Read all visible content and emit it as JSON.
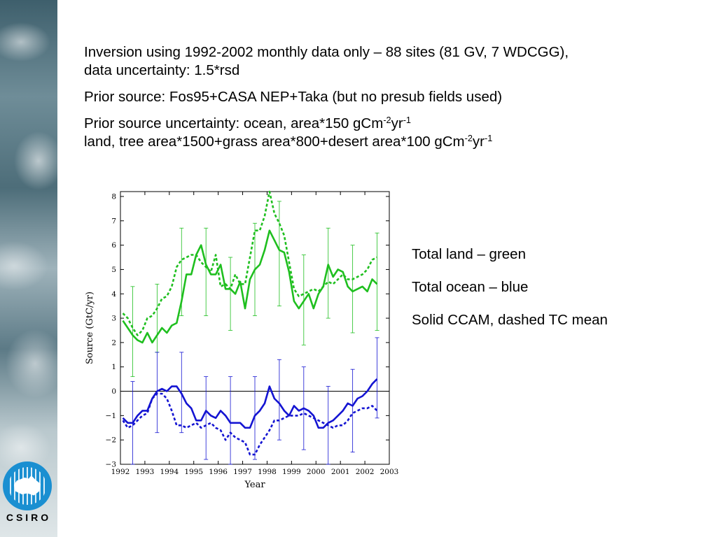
{
  "header": {
    "line1": "Inversion using 1992-2002 monthly data only – 88 sites (81 GV, 7 WDCGG),",
    "line2": "data uncertainty: 1.5*rsd",
    "prior_source": "Prior source: Fos95+CASA NEP+Taka (but no presub fields used)",
    "unc_ocean_text": "Prior source uncertainty: ocean, area*150 gCm",
    "unc_land_text": "land, tree area*1500+grass area*800+desert area*100 gCm",
    "exp_m2": "-2",
    "yr": "yr",
    "exp_m1": "-1"
  },
  "notes": {
    "land": "Total land – green",
    "ocean": "Total ocean – blue",
    "style": "Solid CCAM, dashed TC mean"
  },
  "logo": {
    "text": "CSIRO"
  },
  "colors": {
    "land": "#1fbf1f",
    "ocean": "#1414d2",
    "frame": "#000000",
    "zero_line": "#000000"
  },
  "chart_data": {
    "type": "line",
    "xlabel": "Year",
    "ylabel": "Source (GtC/yr)",
    "xlim": [
      1992,
      2003
    ],
    "ylim": [
      -3,
      8.2
    ],
    "xticks": [
      1992,
      1993,
      1994,
      1995,
      1996,
      1997,
      1998,
      1999,
      2000,
      2001,
      2002,
      2003
    ],
    "yticks": [
      -3,
      -2,
      -1,
      0,
      1,
      2,
      3,
      4,
      5,
      6,
      7,
      8
    ],
    "zero_line": true,
    "series": [
      {
        "style": "solid",
        "color": "land",
        "x": [
          1992.1,
          1992.3,
          1992.5,
          1992.7,
          1992.9,
          1993.1,
          1993.3,
          1993.5,
          1993.7,
          1993.9,
          1994.1,
          1994.3,
          1994.5,
          1994.7,
          1994.9,
          1995.1,
          1995.3,
          1995.5,
          1995.7,
          1995.9,
          1996.1,
          1996.3,
          1996.5,
          1996.7,
          1996.9,
          1997.1,
          1997.3,
          1997.5,
          1997.7,
          1997.9,
          1998.1,
          1998.3,
          1998.5,
          1998.7,
          1998.9,
          1999.1,
          1999.3,
          1999.5,
          1999.7,
          1999.9,
          2000.1,
          2000.3,
          2000.5,
          2000.7,
          2000.9,
          2001.1,
          2001.3,
          2001.5,
          2001.7,
          2001.9,
          2002.1,
          2002.3,
          2002.5
        ],
        "y": [
          2.9,
          2.6,
          2.3,
          2.1,
          2.0,
          2.4,
          2.0,
          2.3,
          2.6,
          2.4,
          2.7,
          2.8,
          3.7,
          4.8,
          4.8,
          5.6,
          6.0,
          5.2,
          4.8,
          4.8,
          5.2,
          4.2,
          4.2,
          4.0,
          4.5,
          3.4,
          4.6,
          5.0,
          5.2,
          5.8,
          6.6,
          6.2,
          5.8,
          5.7,
          4.9,
          3.7,
          3.4,
          3.7,
          4.0,
          3.4,
          4.0,
          4.3,
          5.2,
          4.7,
          5.0,
          4.9,
          4.3,
          4.1,
          4.2,
          4.3,
          4.1,
          4.6,
          4.4
        ]
      },
      {
        "style": "dashed",
        "color": "land",
        "x": [
          1992.1,
          1992.3,
          1992.5,
          1992.7,
          1992.9,
          1993.1,
          1993.3,
          1993.5,
          1993.7,
          1993.9,
          1994.1,
          1994.3,
          1994.5,
          1994.7,
          1994.9,
          1995.1,
          1995.3,
          1995.5,
          1995.7,
          1995.9,
          1996.1,
          1996.3,
          1996.5,
          1996.7,
          1996.9,
          1997.1,
          1997.3,
          1997.5,
          1997.7,
          1997.9,
          1998.1,
          1998.3,
          1998.5,
          1998.7,
          1998.9,
          1999.1,
          1999.3,
          1999.5,
          1999.7,
          1999.9,
          2000.1,
          2000.3,
          2000.5,
          2000.7,
          2000.9,
          2001.1,
          2001.3,
          2001.5,
          2001.7,
          2001.9,
          2002.1,
          2002.3,
          2002.5
        ],
        "y": [
          3.2,
          3.0,
          2.6,
          2.3,
          2.5,
          3.0,
          3.1,
          3.4,
          3.8,
          3.9,
          4.3,
          5.1,
          5.4,
          5.5,
          5.6,
          5.6,
          5.3,
          5.1,
          4.9,
          5.6,
          4.3,
          4.4,
          4.2,
          4.8,
          4.4,
          4.4,
          5.5,
          6.6,
          6.6,
          7.2,
          8.2,
          7.3,
          6.9,
          6.4,
          5.3,
          4.2,
          3.9,
          4.0,
          4.1,
          4.2,
          4.1,
          4.3,
          4.5,
          4.4,
          4.6,
          4.8,
          4.6,
          4.6,
          4.7,
          4.8,
          5.0,
          5.4,
          5.5
        ]
      },
      {
        "style": "solid",
        "color": "ocean",
        "x": [
          1992.1,
          1992.3,
          1992.5,
          1992.7,
          1992.9,
          1993.1,
          1993.3,
          1993.5,
          1993.7,
          1993.9,
          1994.1,
          1994.3,
          1994.5,
          1994.7,
          1994.9,
          1995.1,
          1995.3,
          1995.5,
          1995.7,
          1995.9,
          1996.1,
          1996.3,
          1996.5,
          1996.7,
          1996.9,
          1997.1,
          1997.3,
          1997.5,
          1997.7,
          1997.9,
          1998.1,
          1998.3,
          1998.5,
          1998.7,
          1998.9,
          1999.1,
          1999.3,
          1999.5,
          1999.7,
          1999.9,
          2000.1,
          2000.3,
          2000.5,
          2000.7,
          2000.9,
          2001.1,
          2001.3,
          2001.5,
          2001.7,
          2001.9,
          2002.1,
          2002.3,
          2002.5
        ],
        "y": [
          -1.1,
          -1.3,
          -1.3,
          -1.0,
          -0.8,
          -0.8,
          -0.3,
          0.0,
          0.1,
          0.0,
          0.2,
          0.2,
          -0.1,
          -0.5,
          -0.7,
          -1.2,
          -1.2,
          -0.8,
          -1.0,
          -1.1,
          -0.8,
          -1.0,
          -1.3,
          -1.3,
          -1.3,
          -1.5,
          -1.5,
          -1.0,
          -0.8,
          -0.5,
          0.2,
          -0.3,
          -0.5,
          -0.8,
          -1.0,
          -0.6,
          -0.8,
          -0.7,
          -0.8,
          -1.0,
          -1.5,
          -1.5,
          -1.3,
          -1.2,
          -1.0,
          -0.8,
          -0.5,
          -0.6,
          -0.3,
          -0.2,
          0.0,
          0.3,
          0.5
        ]
      },
      {
        "style": "dashed",
        "color": "ocean",
        "x": [
          1992.1,
          1992.3,
          1992.5,
          1992.7,
          1992.9,
          1993.1,
          1993.3,
          1993.5,
          1993.7,
          1993.9,
          1994.1,
          1994.3,
          1994.5,
          1994.7,
          1994.9,
          1995.1,
          1995.3,
          1995.5,
          1995.7,
          1995.9,
          1996.1,
          1996.3,
          1996.5,
          1996.7,
          1996.9,
          1997.1,
          1997.3,
          1997.5,
          1997.7,
          1997.9,
          1998.1,
          1998.3,
          1998.5,
          1998.7,
          1998.9,
          1999.1,
          1999.3,
          1999.5,
          1999.7,
          1999.9,
          2000.1,
          2000.3,
          2000.5,
          2000.7,
          2000.9,
          2001.1,
          2001.3,
          2001.5,
          2001.7,
          2001.9,
          2002.1,
          2002.3,
          2002.5
        ],
        "y": [
          -1.2,
          -1.5,
          -1.4,
          -1.2,
          -1.0,
          -0.9,
          -0.3,
          -0.1,
          -0.1,
          -0.3,
          -0.8,
          -1.4,
          -1.4,
          -1.5,
          -1.4,
          -1.3,
          -1.5,
          -1.4,
          -1.3,
          -1.5,
          -1.6,
          -2.0,
          -1.7,
          -1.9,
          -2.0,
          -2.1,
          -2.6,
          -2.6,
          -2.2,
          -1.9,
          -1.6,
          -1.2,
          -1.2,
          -1.1,
          -1.0,
          -1.0,
          -1.0,
          -0.9,
          -1.0,
          -1.1,
          -1.2,
          -1.3,
          -1.4,
          -1.5,
          -1.4,
          -1.4,
          -1.2,
          -0.9,
          -0.8,
          -0.7,
          -0.7,
          -0.6,
          -0.8
        ]
      }
    ],
    "error_bars": [
      {
        "color": "land",
        "x": 1992.5,
        "low": 0.6,
        "high": 4.3
      },
      {
        "color": "land",
        "x": 1993.5,
        "low": 1.6,
        "high": 4.4
      },
      {
        "color": "land",
        "x": 1994.5,
        "low": 3.1,
        "high": 6.7
      },
      {
        "color": "land",
        "x": 1995.5,
        "low": 3.1,
        "high": 6.7
      },
      {
        "color": "land",
        "x": 1996.5,
        "low": 2.5,
        "high": 5.5
      },
      {
        "color": "land",
        "x": 1997.5,
        "low": 3.1,
        "high": 6.9
      },
      {
        "color": "land",
        "x": 1998.5,
        "low": 3.5,
        "high": 7.8
      },
      {
        "color": "land",
        "x": 1999.5,
        "low": 1.9,
        "high": 5.6
      },
      {
        "color": "land",
        "x": 2000.5,
        "low": 3.0,
        "high": 6.7
      },
      {
        "color": "land",
        "x": 2001.5,
        "low": 2.4,
        "high": 6.0
      },
      {
        "color": "land",
        "x": 2002.5,
        "low": 2.5,
        "high": 6.5
      },
      {
        "color": "ocean",
        "x": 1992.5,
        "low": -3.0,
        "high": 0.4
      },
      {
        "color": "ocean",
        "x": 1993.5,
        "low": -1.7,
        "high": 1.6
      },
      {
        "color": "ocean",
        "x": 1994.5,
        "low": -1.7,
        "high": 1.6
      },
      {
        "color": "ocean",
        "x": 1995.5,
        "low": -2.8,
        "high": 0.6
      },
      {
        "color": "ocean",
        "x": 1996.5,
        "low": -3.0,
        "high": 0.6
      },
      {
        "color": "ocean",
        "x": 1997.5,
        "low": -2.8,
        "high": 0.6
      },
      {
        "color": "ocean",
        "x": 1998.5,
        "low": -2.0,
        "high": 1.3
      },
      {
        "color": "ocean",
        "x": 1999.5,
        "low": -2.4,
        "high": 1.0
      },
      {
        "color": "ocean",
        "x": 2000.5,
        "low": -3.0,
        "high": 0.2
      },
      {
        "color": "ocean",
        "x": 2001.5,
        "low": -2.5,
        "high": 0.9
      },
      {
        "color": "ocean",
        "x": 2002.5,
        "low": -1.1,
        "high": 2.2
      }
    ]
  }
}
